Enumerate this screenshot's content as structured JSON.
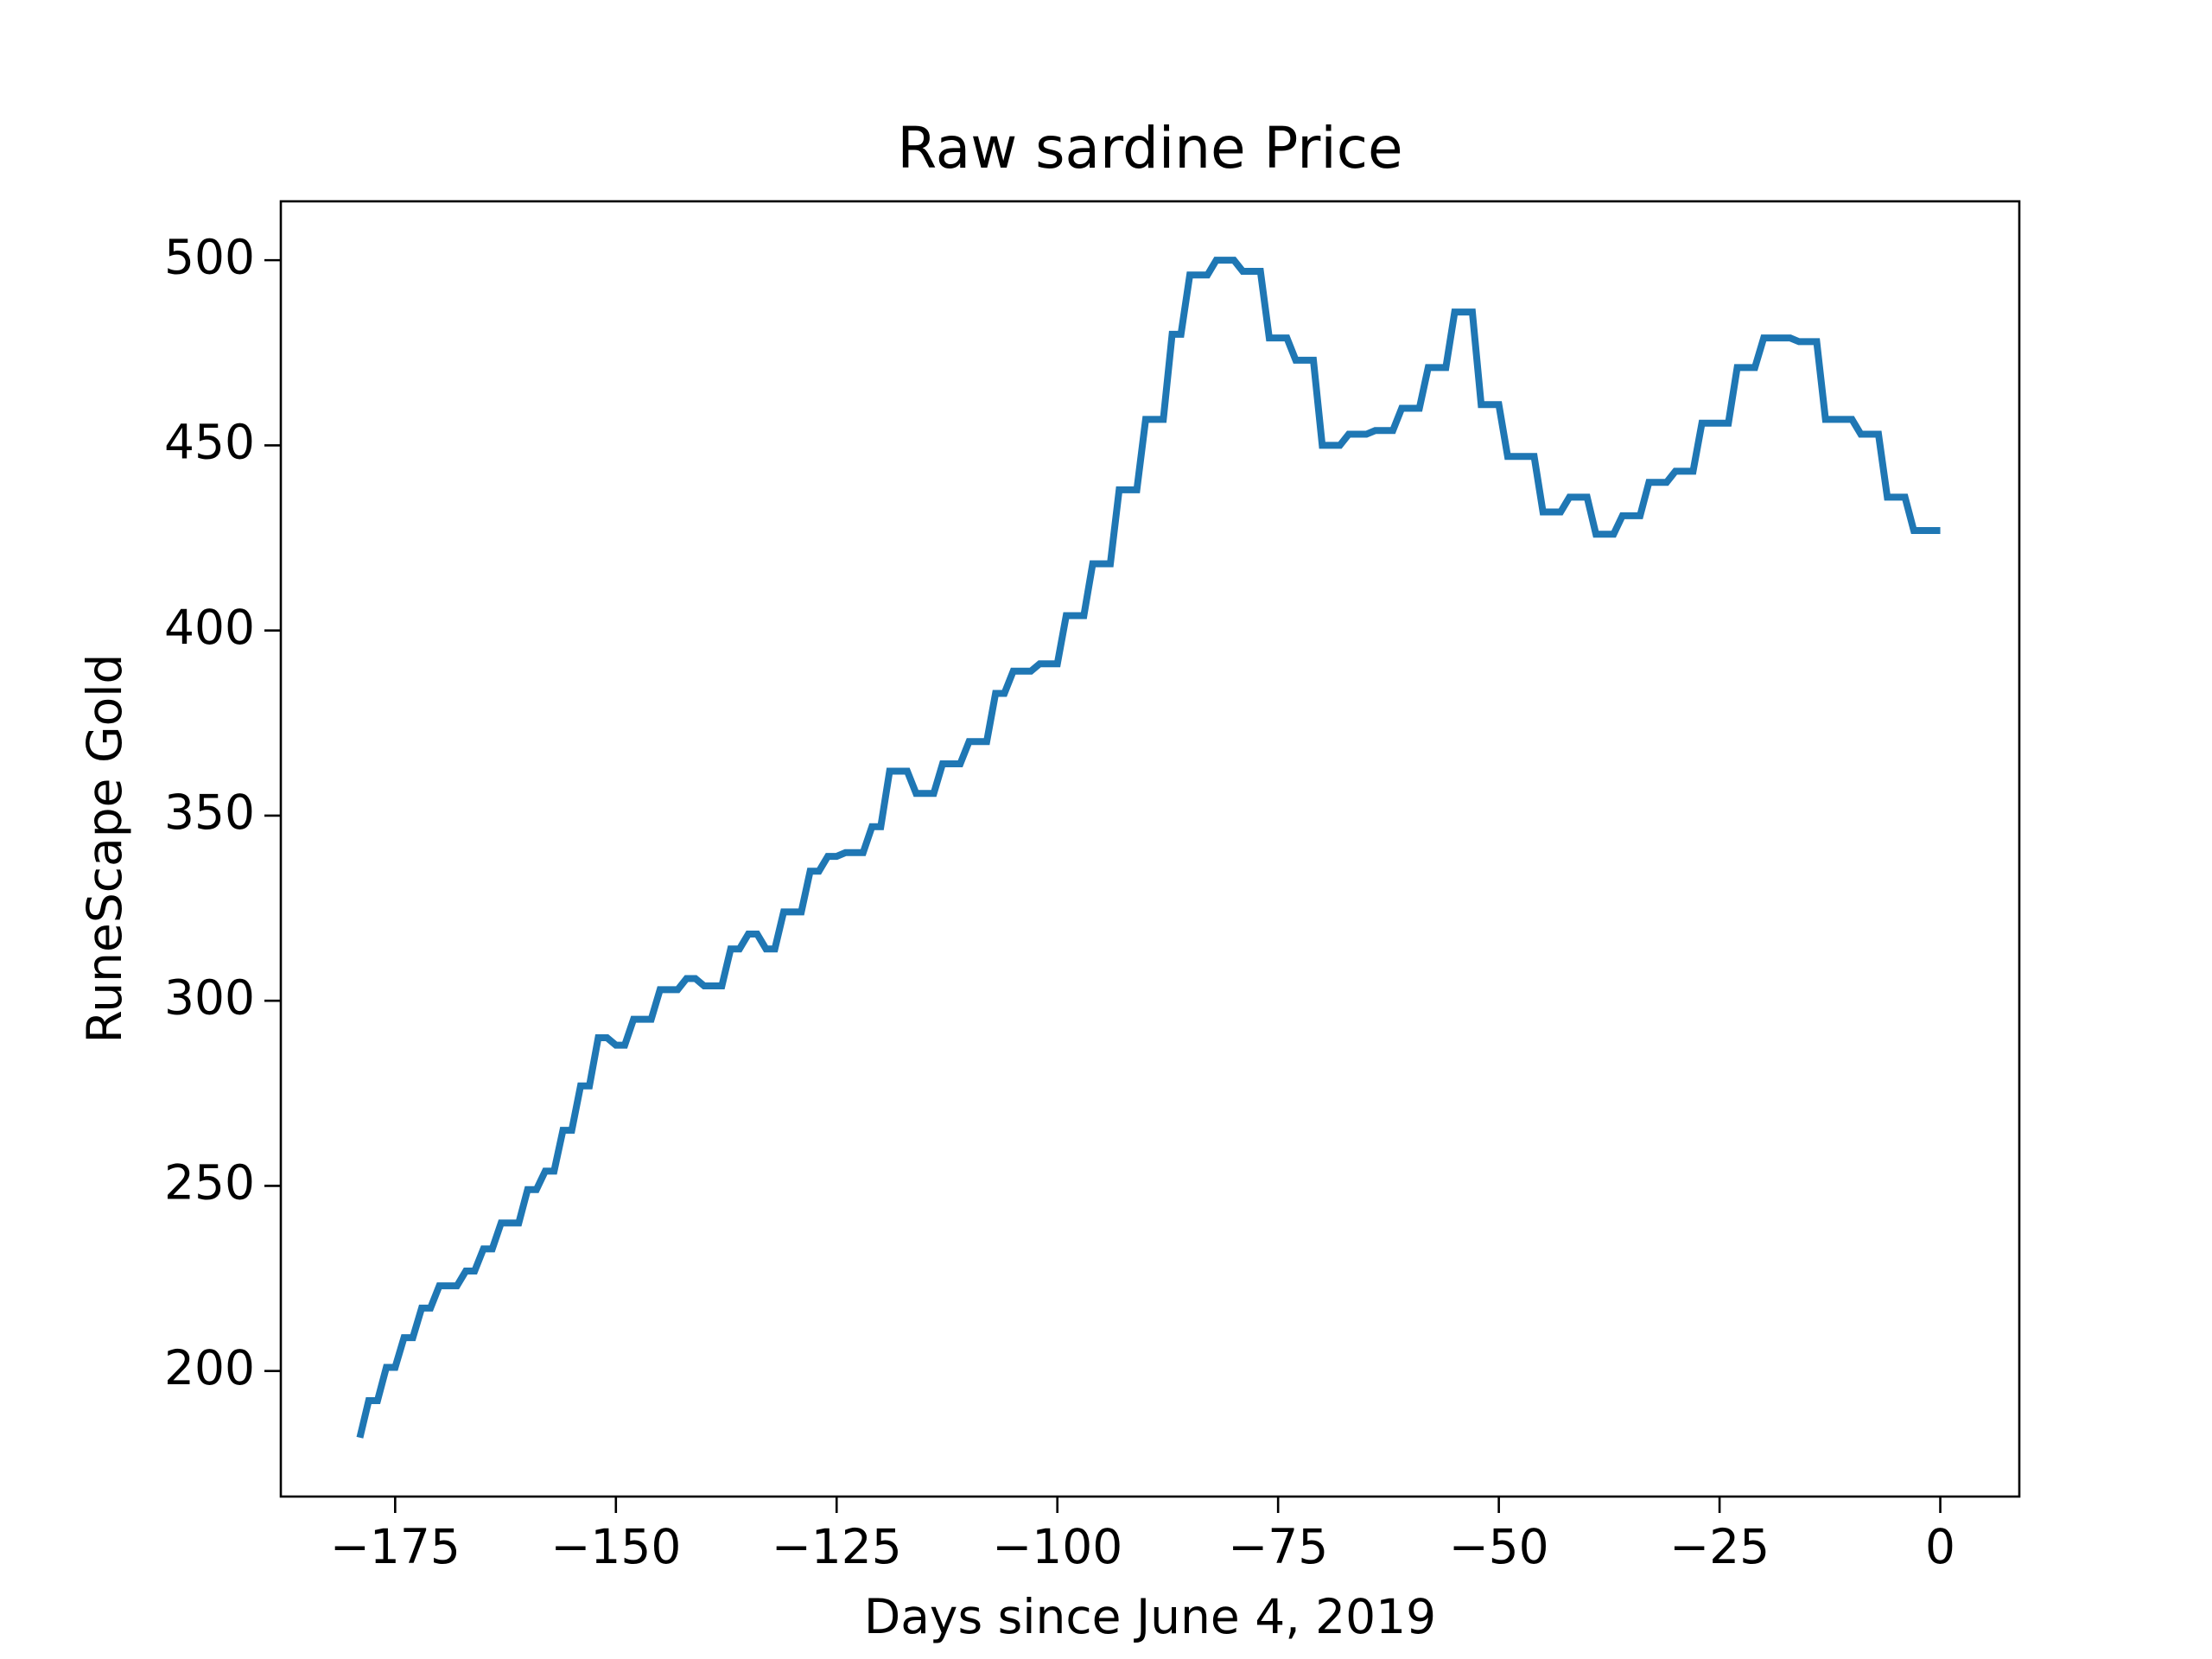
{
  "chart_data": {
    "type": "line",
    "title": "Raw sardine Price",
    "xlabel": "Days since June 4, 2019",
    "ylabel": "RuneScape Gold",
    "x": [
      -179,
      -178,
      -177,
      -176,
      -175,
      -174,
      -173,
      -172,
      -171,
      -170,
      -169,
      -168,
      -167,
      -166,
      -165,
      -164,
      -163,
      -162,
      -161,
      -160,
      -159,
      -158,
      -157,
      -156,
      -155,
      -154,
      -153,
      -152,
      -151,
      -150,
      -149,
      -148,
      -147,
      -146,
      -145,
      -144,
      -143,
      -142,
      -141,
      -140,
      -139,
      -138,
      -137,
      -136,
      -135,
      -134,
      -133,
      -132,
      -131,
      -130,
      -129,
      -128,
      -127,
      -126,
      -125,
      -124,
      -123,
      -122,
      -121,
      -120,
      -119,
      -118,
      -117,
      -116,
      -115,
      -114,
      -113,
      -112,
      -111,
      -110,
      -109,
      -108,
      -107,
      -106,
      -105,
      -104,
      -103,
      -102,
      -101,
      -100,
      -99,
      -98,
      -97,
      -96,
      -95,
      -94,
      -93,
      -92,
      -91,
      -90,
      -89,
      -88,
      -87,
      -86,
      -85,
      -84,
      -83,
      -82,
      -81,
      -80,
      -79,
      -78,
      -77,
      -76,
      -75,
      -74,
      -73,
      -72,
      -71,
      -70,
      -69,
      -68,
      -67,
      -66,
      -65,
      -64,
      -63,
      -62,
      -61,
      -60,
      -59,
      -58,
      -57,
      -56,
      -55,
      -54,
      -53,
      -52,
      -51,
      -50,
      -49,
      -48,
      -47,
      -46,
      -45,
      -44,
      -43,
      -42,
      -41,
      -40,
      -39,
      -38,
      -37,
      -36,
      -35,
      -34,
      -33,
      -32,
      -31,
      -30,
      -29,
      -28,
      -27,
      -26,
      -25,
      -24,
      -23,
      -22,
      -21,
      -20,
      -19,
      -18,
      -17,
      -16,
      -15,
      -14,
      -13,
      -12,
      -11,
      -10,
      -9,
      -8,
      -7,
      -6,
      -5,
      -4,
      -3,
      -2,
      -1,
      0
    ],
    "series": [
      {
        "color": "#1f77b4",
        "values": [
          182,
          192,
          192,
          201,
          201,
          209,
          209,
          217,
          217,
          223,
          223,
          223,
          227,
          227,
          233,
          233,
          240,
          240,
          240,
          249,
          249,
          254,
          254,
          265,
          265,
          277,
          277,
          290,
          290,
          288,
          288,
          295,
          295,
          295,
          303,
          303,
          303,
          306,
          306,
          304,
          304,
          304,
          314,
          314,
          318,
          318,
          314,
          314,
          324,
          324,
          324,
          335,
          335,
          339,
          339,
          340,
          340,
          340,
          347,
          347,
          362,
          362,
          362,
          356,
          356,
          356,
          364,
          364,
          364,
          370,
          370,
          370,
          383,
          383,
          389,
          389,
          389,
          391,
          391,
          391,
          404,
          404,
          404,
          418,
          418,
          418,
          438,
          438,
          438,
          457,
          457,
          457,
          480,
          480,
          496,
          496,
          496,
          500,
          500,
          500,
          497,
          497,
          497,
          479,
          479,
          479,
          473,
          473,
          473,
          450,
          450,
          450,
          453,
          453,
          453,
          454,
          454,
          454,
          460,
          460,
          460,
          471,
          471,
          471,
          486,
          486,
          486,
          461,
          461,
          461,
          447,
          447,
          447,
          447,
          432,
          432,
          432,
          436,
          436,
          436,
          426,
          426,
          426,
          431,
          431,
          431,
          440,
          440,
          440,
          443,
          443,
          443,
          456,
          456,
          456,
          456,
          471,
          471,
          471,
          479,
          479,
          479,
          479,
          478,
          478,
          478,
          457,
          457,
          457,
          457,
          453,
          453,
          453,
          436,
          436,
          436,
          427,
          427,
          427,
          427
        ]
      }
    ],
    "xlim": [
      -187.95,
      8.95
    ],
    "ylim": [
      166.1,
      515.9
    ],
    "xticks": [
      {
        "value": -175,
        "label": "−175"
      },
      {
        "value": -150,
        "label": "−150"
      },
      {
        "value": -125,
        "label": "−125"
      },
      {
        "value": -100,
        "label": "−100"
      },
      {
        "value": -75,
        "label": "−75"
      },
      {
        "value": -50,
        "label": "−50"
      },
      {
        "value": -25,
        "label": "−25"
      },
      0
    ],
    "yticks": [
      200,
      250,
      300,
      350,
      400,
      450,
      500
    ]
  }
}
